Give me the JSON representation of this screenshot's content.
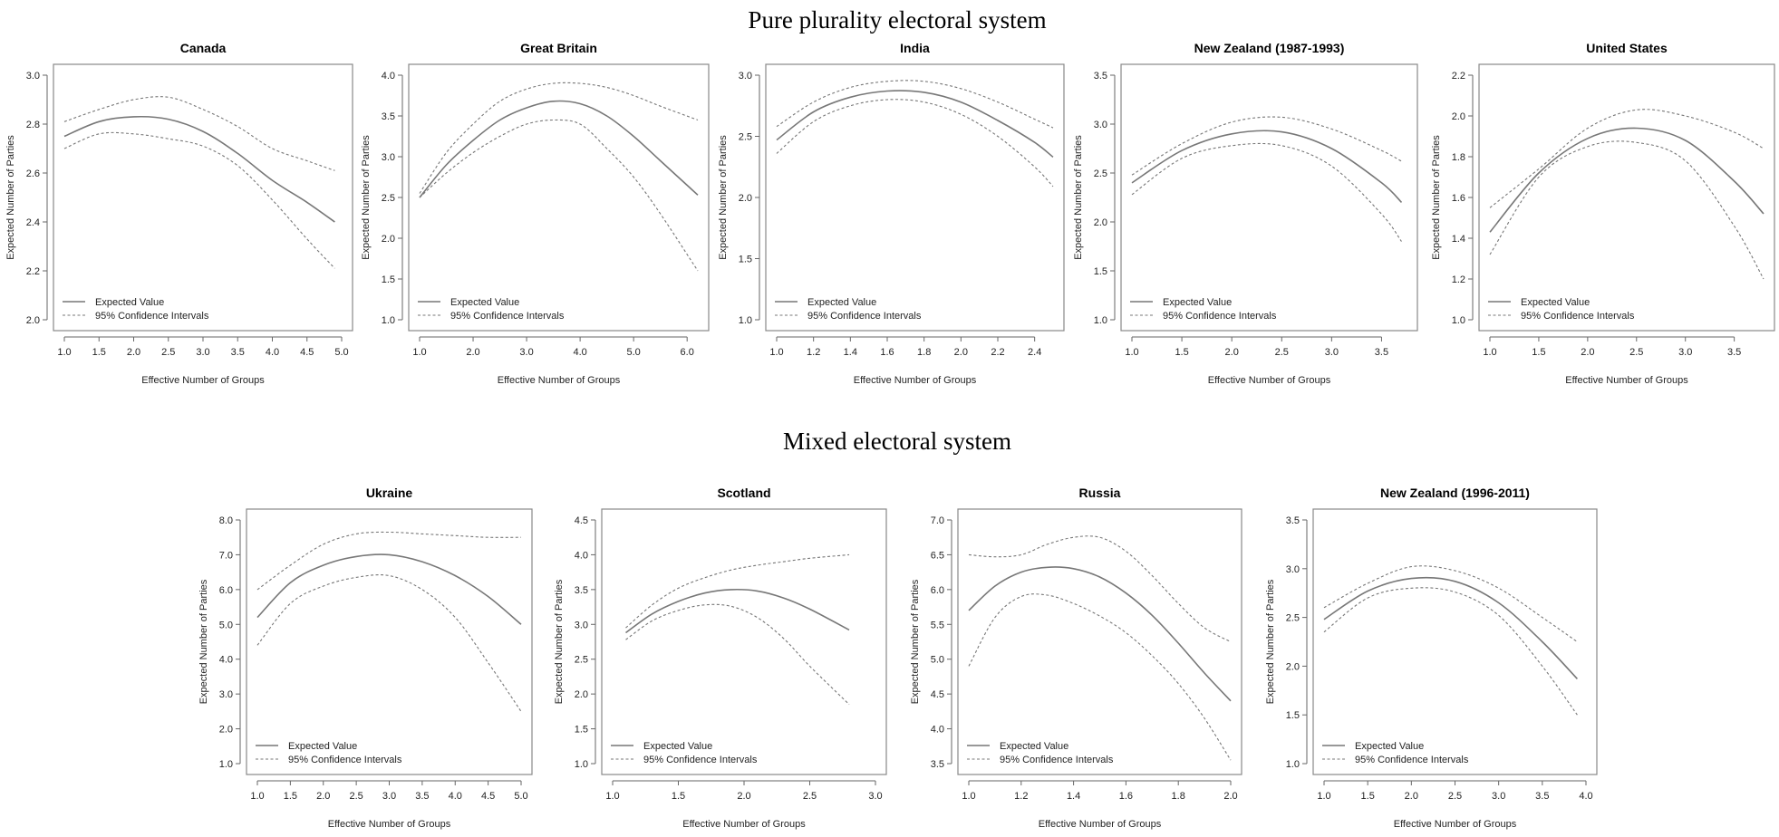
{
  "sections": {
    "top_title": "Pure plurality electoral system",
    "bottom_title": "Mixed electoral system"
  },
  "legend": {
    "expected": "Expected Value",
    "ci": "95% Confidence Intervals"
  },
  "colors": {
    "line": "#777777",
    "frame": "#888888"
  },
  "chart_data": [
    {
      "type": "line",
      "title": "Canada",
      "xlabel": "Effective Number of Groups",
      "ylabel": "Expected Number of Parties",
      "xlim": [
        1.0,
        5.0
      ],
      "ylim": [
        2.0,
        3.0
      ],
      "xticks": [
        "1.0",
        "1.5",
        "2.0",
        "2.5",
        "3.0",
        "3.5",
        "4.0",
        "4.5",
        "5.0"
      ],
      "yticks": [
        "2.0",
        "2.2",
        "2.4",
        "2.6",
        "2.8",
        "3.0"
      ],
      "x": [
        1.0,
        1.5,
        2.0,
        2.5,
        3.0,
        3.5,
        4.0,
        4.5,
        4.9
      ],
      "series": [
        {
          "name": "Expected Value",
          "values": [
            2.75,
            2.81,
            2.83,
            2.82,
            2.77,
            2.68,
            2.57,
            2.48,
            2.4
          ]
        },
        {
          "name": "95% Confidence Intervals",
          "values": [
            2.81,
            2.86,
            2.9,
            2.91,
            2.86,
            2.79,
            2.7,
            2.65,
            2.61
          ]
        },
        {
          "name": "95% Confidence Intervals",
          "values": [
            2.7,
            2.76,
            2.76,
            2.74,
            2.71,
            2.63,
            2.49,
            2.33,
            2.21
          ]
        }
      ],
      "legend_position": "bottom-left"
    },
    {
      "type": "line",
      "title": "Great Britain",
      "xlabel": "Effective Number of Groups",
      "ylabel": "Expected Number of Parties",
      "xlim": [
        1.0,
        6.2
      ],
      "ylim": [
        1.0,
        4.0
      ],
      "xticks": [
        "1.0",
        "2.0",
        "3.0",
        "4.0",
        "5.0",
        "6.0"
      ],
      "yticks": [
        "1.0",
        "1.5",
        "2.0",
        "2.5",
        "3.0",
        "3.5",
        "4.0"
      ],
      "x": [
        1.0,
        1.5,
        2.0,
        2.5,
        3.0,
        3.5,
        4.0,
        4.5,
        5.0,
        5.5,
        6.2
      ],
      "series": [
        {
          "name": "Expected Value",
          "values": [
            2.5,
            2.9,
            3.2,
            3.45,
            3.6,
            3.68,
            3.65,
            3.5,
            3.25,
            2.95,
            2.53
          ]
        },
        {
          "name": "95% Confidence Intervals",
          "values": [
            2.55,
            3.05,
            3.4,
            3.68,
            3.83,
            3.9,
            3.9,
            3.85,
            3.75,
            3.62,
            3.45
          ]
        },
        {
          "name": "95% Confidence Intervals",
          "values": [
            2.5,
            2.8,
            3.05,
            3.25,
            3.4,
            3.45,
            3.4,
            3.1,
            2.75,
            2.3,
            1.6
          ]
        }
      ],
      "legend_position": "bottom-left"
    },
    {
      "type": "line",
      "title": "India",
      "xlabel": "Effective Number of Groups",
      "ylabel": "Expected Number of Parties",
      "xlim": [
        1.0,
        2.5
      ],
      "ylim": [
        1.0,
        3.0
      ],
      "xticks": [
        "1.0",
        "1.2",
        "1.4",
        "1.6",
        "1.8",
        "2.0",
        "2.2",
        "2.4"
      ],
      "yticks": [
        "1.0",
        "1.5",
        "2.0",
        "2.5",
        "3.0"
      ],
      "x": [
        1.0,
        1.2,
        1.4,
        1.6,
        1.8,
        2.0,
        2.2,
        2.4,
        2.5
      ],
      "series": [
        {
          "name": "Expected Value",
          "values": [
            2.47,
            2.7,
            2.82,
            2.87,
            2.86,
            2.78,
            2.63,
            2.45,
            2.33
          ]
        },
        {
          "name": "95% Confidence Intervals",
          "values": [
            2.58,
            2.78,
            2.9,
            2.95,
            2.95,
            2.89,
            2.78,
            2.64,
            2.57
          ]
        },
        {
          "name": "95% Confidence Intervals",
          "values": [
            2.36,
            2.62,
            2.75,
            2.8,
            2.78,
            2.68,
            2.5,
            2.25,
            2.09
          ]
        }
      ],
      "legend_position": "bottom-left"
    },
    {
      "type": "line",
      "title": "New Zealand (1987-1993)",
      "xlabel": "Effective Number of Groups",
      "ylabel": "Expected Number of Parties",
      "xlim": [
        1.0,
        3.75
      ],
      "ylim": [
        1.0,
        3.5
      ],
      "xticks": [
        "1.0",
        "1.5",
        "2.0",
        "2.5",
        "3.0",
        "3.5"
      ],
      "yticks": [
        "1.0",
        "1.5",
        "2.0",
        "2.5",
        "3.0",
        "3.5"
      ],
      "x": [
        1.0,
        1.5,
        2.0,
        2.5,
        3.0,
        3.5,
        3.7
      ],
      "series": [
        {
          "name": "Expected Value",
          "values": [
            2.4,
            2.73,
            2.9,
            2.92,
            2.75,
            2.4,
            2.2
          ]
        },
        {
          "name": "95% Confidence Intervals",
          "values": [
            2.48,
            2.8,
            3.02,
            3.07,
            2.95,
            2.73,
            2.62
          ]
        },
        {
          "name": "95% Confidence Intervals",
          "values": [
            2.28,
            2.65,
            2.78,
            2.78,
            2.57,
            2.08,
            1.8
          ]
        }
      ],
      "legend_position": "bottom-left"
    },
    {
      "type": "line",
      "title": "United States",
      "xlabel": "Effective Number of Groups",
      "ylabel": "Expected Number of Parties",
      "xlim": [
        1.0,
        3.8
      ],
      "ylim": [
        1.0,
        2.2
      ],
      "xticks": [
        "1.0",
        "1.5",
        "2.0",
        "2.5",
        "3.0",
        "3.5"
      ],
      "yticks": [
        "1.0",
        "1.2",
        "1.4",
        "1.6",
        "1.8",
        "2.0",
        "2.2"
      ],
      "x": [
        1.0,
        1.5,
        2.0,
        2.5,
        3.0,
        3.5,
        3.8
      ],
      "series": [
        {
          "name": "Expected Value",
          "values": [
            1.43,
            1.72,
            1.89,
            1.94,
            1.88,
            1.68,
            1.52
          ]
        },
        {
          "name": "95% Confidence Intervals",
          "values": [
            1.55,
            1.74,
            1.94,
            2.03,
            2.0,
            1.92,
            1.84
          ]
        },
        {
          "name": "95% Confidence Intervals",
          "values": [
            1.32,
            1.7,
            1.85,
            1.87,
            1.78,
            1.46,
            1.2
          ]
        }
      ],
      "legend_position": "bottom-left"
    },
    {
      "type": "line",
      "title": "Ukraine",
      "xlabel": "Effective Number of Groups",
      "ylabel": "Expected Number of Parties",
      "xlim": [
        1.0,
        5.0
      ],
      "ylim": [
        1.0,
        8.0
      ],
      "xticks": [
        "1.0",
        "1.5",
        "2.0",
        "2.5",
        "3.0",
        "3.5",
        "4.0",
        "4.5",
        "5.0"
      ],
      "yticks": [
        "1.0",
        "2.0",
        "3.0",
        "4.0",
        "5.0",
        "6.0",
        "7.0",
        "8.0"
      ],
      "x": [
        1.0,
        1.5,
        2.0,
        2.5,
        3.0,
        3.5,
        4.0,
        4.5,
        5.0
      ],
      "series": [
        {
          "name": "Expected Value",
          "values": [
            5.2,
            6.2,
            6.7,
            6.95,
            7.0,
            6.8,
            6.4,
            5.8,
            5.0
          ]
        },
        {
          "name": "95% Confidence Intervals",
          "values": [
            6.0,
            6.7,
            7.3,
            7.6,
            7.65,
            7.6,
            7.55,
            7.5,
            7.5
          ]
        },
        {
          "name": "95% Confidence Intervals",
          "values": [
            4.4,
            5.6,
            6.1,
            6.35,
            6.4,
            6.0,
            5.2,
            3.9,
            2.5
          ]
        }
      ],
      "legend_position": "bottom-left"
    },
    {
      "type": "line",
      "title": "Scotland",
      "xlabel": "Effective Number of Groups",
      "ylabel": "Expected Number of Parties",
      "xlim": [
        1.0,
        3.0
      ],
      "ylim": [
        1.0,
        4.5
      ],
      "xticks": [
        "1.0",
        "1.5",
        "2.0",
        "2.5",
        "3.0"
      ],
      "yticks": [
        "1.0",
        "1.5",
        "2.0",
        "2.5",
        "3.0",
        "3.5",
        "4.0",
        "4.5"
      ],
      "x": [
        1.1,
        1.3,
        1.5,
        1.7,
        1.9,
        2.1,
        2.3,
        2.5,
        2.8
      ],
      "series": [
        {
          "name": "Expected Value",
          "values": [
            2.88,
            3.15,
            3.33,
            3.45,
            3.5,
            3.48,
            3.38,
            3.22,
            2.92
          ]
        },
        {
          "name": "95% Confidence Intervals",
          "values": [
            2.95,
            3.28,
            3.52,
            3.67,
            3.78,
            3.85,
            3.9,
            3.95,
            4.0
          ]
        },
        {
          "name": "95% Confidence Intervals",
          "values": [
            2.78,
            3.05,
            3.2,
            3.28,
            3.26,
            3.1,
            2.8,
            2.4,
            1.85
          ]
        }
      ],
      "legend_position": "bottom-left"
    },
    {
      "type": "line",
      "title": "Russia",
      "xlabel": "Effective Number of Groups",
      "ylabel": "Expected Number of Parties",
      "xlim": [
        1.0,
        2.0
      ],
      "ylim": [
        3.5,
        7.0
      ],
      "xticks": [
        "1.0",
        "1.2",
        "1.4",
        "1.6",
        "1.8",
        "2.0"
      ],
      "yticks": [
        "3.5",
        "4.0",
        "4.5",
        "5.0",
        "5.5",
        "6.0",
        "6.5",
        "7.0"
      ],
      "x": [
        1.0,
        1.1,
        1.2,
        1.3,
        1.4,
        1.5,
        1.6,
        1.7,
        1.8,
        1.9,
        2.0
      ],
      "series": [
        {
          "name": "Expected Value",
          "values": [
            5.7,
            6.05,
            6.25,
            6.32,
            6.3,
            6.18,
            5.95,
            5.63,
            5.23,
            4.8,
            4.4
          ]
        },
        {
          "name": "95% Confidence Intervals",
          "values": [
            6.5,
            6.47,
            6.5,
            6.65,
            6.75,
            6.75,
            6.55,
            6.2,
            5.8,
            5.45,
            5.25
          ]
        },
        {
          "name": "95% Confidence Intervals",
          "values": [
            4.9,
            5.6,
            5.9,
            5.92,
            5.8,
            5.62,
            5.38,
            5.05,
            4.65,
            4.15,
            3.55
          ]
        }
      ],
      "legend_position": "bottom-left"
    },
    {
      "type": "line",
      "title": "New Zealand (1996-2011)",
      "xlabel": "Effective Number of Groups",
      "ylabel": "Expected Number of Parties",
      "xlim": [
        1.0,
        4.0
      ],
      "ylim": [
        1.0,
        3.5
      ],
      "xticks": [
        "1.0",
        "1.5",
        "2.0",
        "2.5",
        "3.0",
        "3.5",
        "4.0"
      ],
      "yticks": [
        "1.0",
        "1.5",
        "2.0",
        "2.5",
        "3.0",
        "3.5"
      ],
      "x": [
        1.0,
        1.5,
        2.0,
        2.5,
        3.0,
        3.5,
        3.9
      ],
      "series": [
        {
          "name": "Expected Value",
          "values": [
            2.48,
            2.77,
            2.9,
            2.87,
            2.65,
            2.25,
            1.87
          ]
        },
        {
          "name": "95% Confidence Intervals",
          "values": [
            2.6,
            2.85,
            3.02,
            2.98,
            2.8,
            2.5,
            2.25
          ]
        },
        {
          "name": "95% Confidence Intervals",
          "values": [
            2.35,
            2.7,
            2.8,
            2.76,
            2.52,
            2.0,
            1.5
          ]
        }
      ],
      "legend_position": "bottom-left"
    }
  ]
}
